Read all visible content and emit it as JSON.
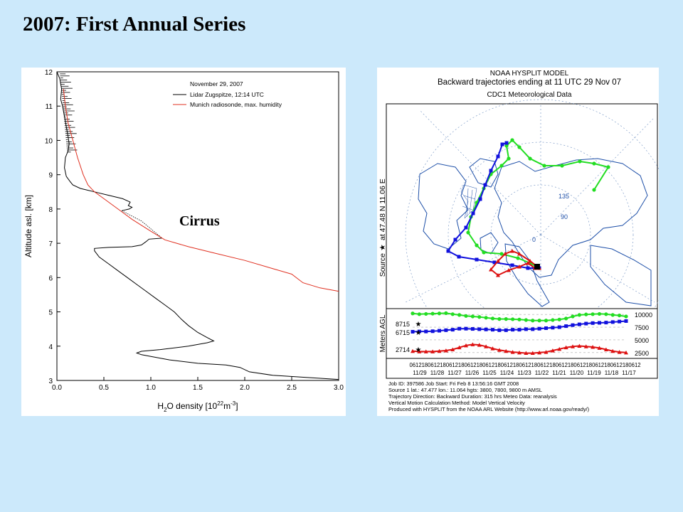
{
  "slide": {
    "title": "2007: First Annual Series"
  },
  "chart_data": [
    {
      "type": "line",
      "title": "",
      "annotation_date": "November 29, 2007",
      "cloud_label": "Cirrus",
      "xlabel_parts": {
        "base": "H",
        "sub": "2",
        "mid": "O density [10",
        "sup1": "22",
        "unit": "m",
        "sup2": "-3",
        "end": "]"
      },
      "ylabel": "Altitude asl. [km]",
      "xlim": [
        0,
        3.0
      ],
      "ylim": [
        3,
        12
      ],
      "xticks": [
        "0.0",
        "0.5",
        "1.0",
        "1.5",
        "2.0",
        "2.5",
        "3.0"
      ],
      "yticks": [
        "3",
        "4",
        "5",
        "6",
        "7",
        "8",
        "9",
        "10",
        "11",
        "12"
      ],
      "grid": false,
      "legend_position": "top-right",
      "series": [
        {
          "name": "Lidar Zugspitze, 12:14 UTC",
          "color": "#000000",
          "points": [
            [
              0.0,
              12.0
            ],
            [
              0.03,
              11.8
            ],
            [
              0.05,
              11.5
            ],
            [
              0.04,
              11.2
            ],
            [
              0.06,
              11.0
            ],
            [
              0.08,
              10.7
            ],
            [
              0.1,
              10.4
            ],
            [
              0.12,
              10.1
            ],
            [
              0.13,
              9.9
            ],
            [
              0.12,
              9.7
            ],
            [
              0.09,
              9.5
            ],
            [
              0.08,
              9.2
            ],
            [
              0.1,
              8.95
            ],
            [
              0.14,
              8.8
            ],
            [
              0.17,
              8.7
            ],
            [
              0.25,
              8.6
            ],
            [
              0.4,
              8.5
            ],
            [
              0.55,
              8.4
            ],
            [
              0.7,
              8.3
            ],
            [
              0.78,
              8.2
            ],
            [
              0.76,
              8.1
            ],
            [
              0.8,
              8.05
            ],
            [
              0.77,
              8.0
            ],
            [
              0.69,
              7.95
            ]
          ],
          "gap_points": [
            [
              0.69,
              7.95
            ],
            [
              0.9,
              7.65
            ],
            [
              1.12,
              7.15
            ]
          ],
          "points_lower": [
            [
              1.12,
              7.15
            ],
            [
              0.98,
              7.12
            ],
            [
              0.95,
              7.05
            ],
            [
              0.9,
              6.95
            ],
            [
              0.8,
              6.9
            ],
            [
              0.55,
              6.88
            ],
            [
              0.4,
              6.85
            ],
            [
              0.4,
              6.78
            ],
            [
              0.45,
              6.6
            ],
            [
              0.55,
              6.4
            ],
            [
              0.65,
              6.2
            ],
            [
              0.75,
              6.0
            ],
            [
              0.85,
              5.8
            ],
            [
              0.95,
              5.6
            ],
            [
              1.05,
              5.4
            ],
            [
              1.15,
              5.2
            ],
            [
              1.25,
              5.0
            ],
            [
              1.32,
              4.8
            ],
            [
              1.4,
              4.6
            ],
            [
              1.5,
              4.4
            ],
            [
              1.6,
              4.25
            ],
            [
              1.67,
              4.15
            ],
            [
              1.6,
              4.1
            ],
            [
              1.4,
              4.0
            ],
            [
              1.1,
              3.9
            ],
            [
              0.9,
              3.85
            ],
            [
              0.85,
              3.8
            ],
            [
              0.9,
              3.75
            ],
            [
              1.0,
              3.7
            ],
            [
              1.2,
              3.6
            ],
            [
              1.5,
              3.5
            ],
            [
              1.8,
              3.45
            ],
            [
              1.95,
              3.38
            ],
            [
              2.05,
              3.25
            ],
            [
              2.3,
              3.15
            ],
            [
              2.7,
              3.08
            ],
            [
              3.0,
              3.03
            ]
          ]
        },
        {
          "name": "Munich radiosonde, max. humidity",
          "color": "#e03020",
          "points": [
            [
              0.07,
              11.5
            ],
            [
              0.09,
              11.0
            ],
            [
              0.12,
              10.5
            ],
            [
              0.17,
              10.0
            ],
            [
              0.22,
              9.5
            ],
            [
              0.28,
              9.0
            ],
            [
              0.33,
              8.7
            ],
            [
              0.4,
              8.5
            ],
            [
              0.5,
              8.3
            ],
            [
              0.65,
              8.0
            ],
            [
              0.8,
              7.7
            ],
            [
              1.0,
              7.35
            ],
            [
              1.15,
              7.1
            ],
            [
              1.4,
              6.9
            ],
            [
              1.7,
              6.7
            ],
            [
              2.0,
              6.5
            ],
            [
              2.25,
              6.3
            ],
            [
              2.5,
              6.1
            ],
            [
              2.62,
              5.85
            ],
            [
              2.8,
              5.7
            ],
            [
              3.0,
              5.6
            ]
          ]
        }
      ]
    },
    {
      "type": "line",
      "title": "NOAA HYSPLIT MODEL",
      "subtitle": "Backward trajectories ending at 11 UTC 29 Nov 07",
      "data_source": "CDC1 Meteorological Data",
      "source_label": "Source",
      "source_location": "at   47.48 N   11.06 E",
      "ylabel": "Meters AGL",
      "heights_start": [
        "8715",
        "6715",
        "2714"
      ],
      "heights_axis": [
        "10000",
        "7500",
        "5000",
        "2500"
      ],
      "time_ticks": [
        "11/29",
        "11/28",
        "11/27",
        "11/26",
        "11/25",
        "11/24",
        "11/23",
        "11/22",
        "11/21",
        "11/20",
        "11/19",
        "11/18",
        "11/17"
      ],
      "hour_ticks": "0612180612180612180612180612180612180612180612180612180612180612180612180612",
      "map_labels": [
        "135",
        "90",
        "0"
      ],
      "footer_lines": [
        "Job ID: 397586        Job Start: Fri Feb  8 13:56:16 GMT 2008",
        "Source 1 lat.: 47.477  lon.: 11.064  hgts: 3800, 7800, 9800 m AMSL",
        "Trajectory Direction: Backward    Duration: 315 hrs    Meteo Data: reanalysis",
        "Vertical Motion Calculation Method: Model Vertical Velocity",
        "Produced with HYSPLIT from the NOAA ARL Website (http://www.arl.noaa.gov/ready/)"
      ],
      "series": [
        {
          "name": "8715",
          "color": "#22dd22",
          "marker": "circle",
          "heights": [
            9600,
            9800,
            9900,
            10050,
            10100,
            10050,
            10000,
            9900,
            9600,
            9200,
            9000,
            8900,
            8800,
            8800,
            8800,
            8900,
            9000,
            9050,
            9100,
            9100,
            9200,
            9350,
            9500,
            9600,
            9700,
            9900,
            10050,
            10250,
            10200,
            10150,
            10100,
            10050,
            10200
          ]
        },
        {
          "name": "6715",
          "color": "#1111dd",
          "marker": "square",
          "heights": [
            8700,
            8600,
            8500,
            8400,
            8350,
            8300,
            8200,
            8050,
            7900,
            7700,
            7500,
            7400,
            7300,
            7200,
            7100,
            7100,
            7000,
            7000,
            6900,
            6900,
            7000,
            7050,
            7100,
            7150,
            7200,
            7200,
            7000,
            6900,
            6800,
            6700,
            6650,
            6650,
            6600
          ]
        },
        {
          "name": "2714",
          "color": "#dd1111",
          "marker": "triangle",
          "heights": [
            2500,
            2600,
            2800,
            3100,
            3400,
            3600,
            3700,
            3800,
            3700,
            3500,
            3200,
            2900,
            2600,
            2500,
            2400,
            2400,
            2500,
            2600,
            2800,
            3000,
            3300,
            3700,
            4000,
            4100,
            3900,
            3500,
            3100,
            2900,
            2800,
            2700,
            2700,
            2700,
            2800
          ]
        }
      ]
    }
  ]
}
